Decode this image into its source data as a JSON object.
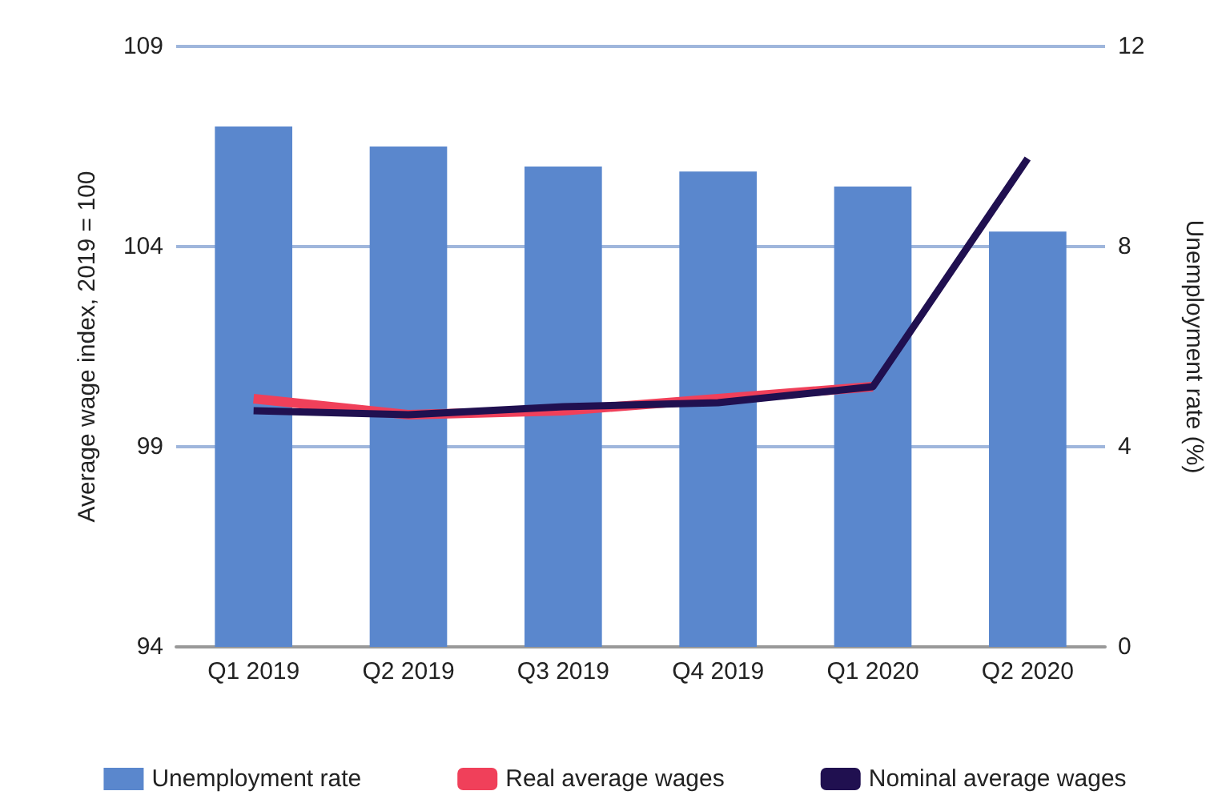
{
  "chart_data": {
    "type": "bar",
    "ylabel": "Average wage index, 2019 = 100",
    "y2label": "Unemployment rate (%)",
    "categories": [
      "Q1 2019",
      "Q2 2019",
      "Q3 2019",
      "Q4 2019",
      "Q1 2020",
      "Q2 2020"
    ],
    "series": [
      {
        "name": "Unemployment rate",
        "axis": "y2",
        "color": "#5a87cd",
        "values": [
          10.4,
          10.0,
          9.6,
          9.5,
          9.2,
          8.3
        ]
      },
      {
        "name": "Real average wages",
        "type": "line",
        "color": "#f0405a",
        "values": [
          100.2,
          99.8,
          99.9,
          100.2,
          100.5,
          null
        ]
      },
      {
        "name": "Nominal average wages",
        "type": "line",
        "color": "#201050",
        "values": [
          99.9,
          99.8,
          100.0,
          100.1,
          100.5,
          106.2
        ]
      }
    ],
    "ylim": [
      94,
      109
    ],
    "yticks": [
      94,
      99,
      104,
      109
    ],
    "y2lim": [
      0,
      12
    ],
    "y2ticks": [
      0,
      4,
      8,
      12
    ],
    "grid": "y",
    "legend": "bottom",
    "marker": "none"
  }
}
